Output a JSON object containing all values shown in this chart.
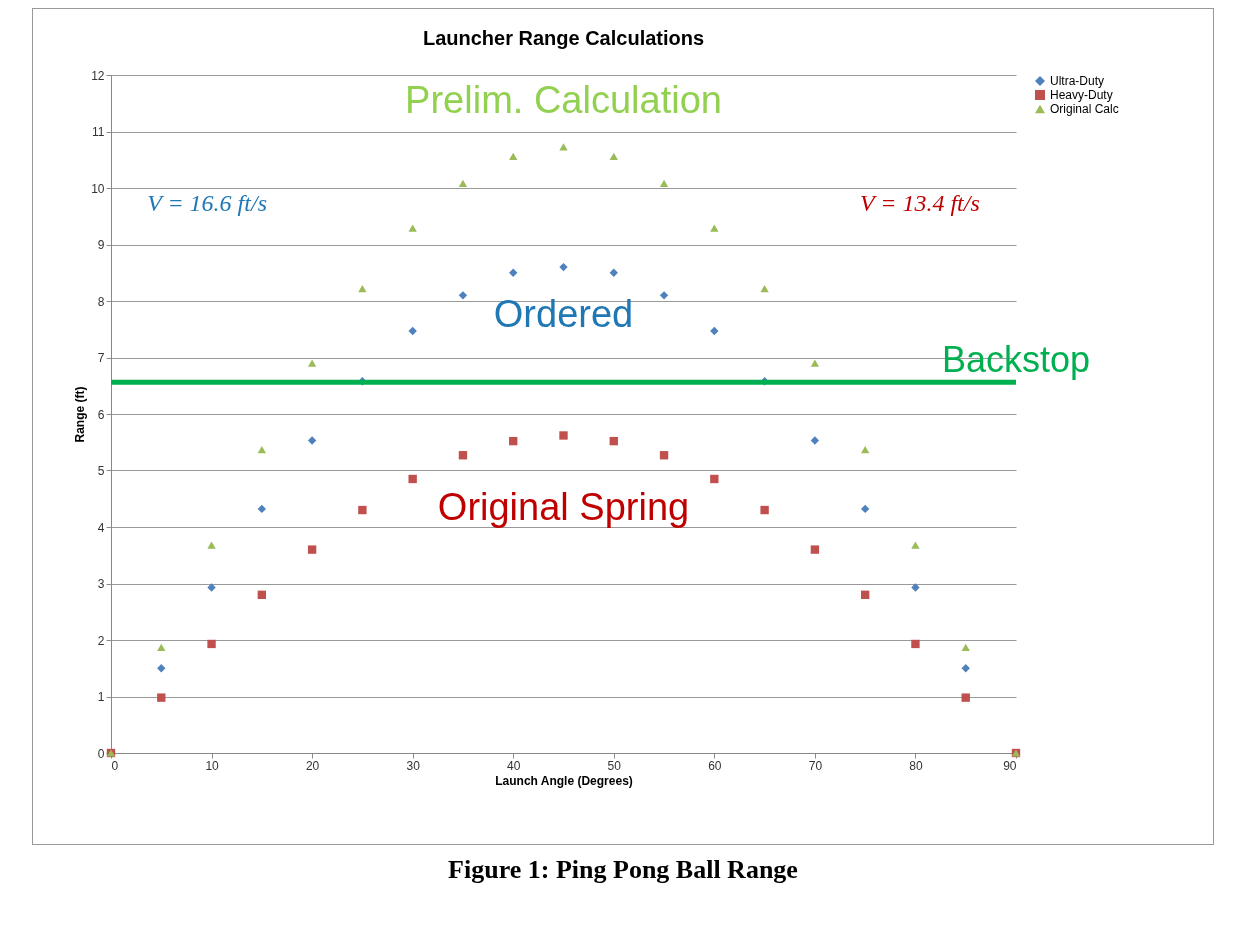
{
  "chart_data": {
    "type": "scatter",
    "title": "Launcher Range Calculations",
    "xlabel": "Launch Angle (Degrees)",
    "ylabel": "Range (ft)",
    "x": [
      0,
      5,
      10,
      15,
      20,
      25,
      30,
      35,
      40,
      45,
      50,
      55,
      60,
      65,
      70,
      75,
      80,
      85,
      90
    ],
    "series": [
      {
        "name": "Ultra-Duty",
        "color": "#4f81bd",
        "marker": "diamond",
        "values": [
          null,
          1.5,
          2.93,
          4.32,
          5.53,
          6.58,
          7.47,
          8.1,
          8.5,
          8.6,
          8.5,
          8.1,
          7.47,
          6.58,
          5.53,
          4.32,
          2.93,
          1.5,
          null
        ]
      },
      {
        "name": "Heavy-Duty",
        "color": "#c0504d",
        "marker": "square",
        "values": [
          0,
          0.98,
          1.93,
          2.8,
          3.6,
          4.3,
          4.85,
          5.27,
          5.52,
          5.62,
          5.52,
          5.27,
          4.85,
          4.3,
          3.6,
          2.8,
          1.93,
          0.98,
          0
        ]
      },
      {
        "name": "Original Calc",
        "color": "#9bbb59",
        "marker": "triangle",
        "values": [
          0,
          1.87,
          3.68,
          5.37,
          6.9,
          8.22,
          9.29,
          10.08,
          10.56,
          10.73,
          10.56,
          10.08,
          9.29,
          8.22,
          6.9,
          5.37,
          3.68,
          1.87,
          0
        ]
      }
    ],
    "xlim": [
      0,
      90
    ],
    "xticks": [
      0,
      10,
      20,
      30,
      40,
      50,
      60,
      70,
      80,
      90
    ],
    "ylim": [
      0,
      12
    ],
    "yticks": [
      0,
      1,
      2,
      3,
      4,
      5,
      6,
      7,
      8,
      9,
      10,
      11,
      12
    ],
    "grid": "y",
    "legend": "right",
    "ref_lines": [
      {
        "axis": "y",
        "value": 6.56,
        "label": "Backstop",
        "color": "#00b050"
      }
    ],
    "annotations": [
      "Prelim. Calculation",
      "Ordered",
      "Original Spring",
      "V = 16.6 ft/s",
      "V = 13.4 ft/s",
      "Figure 1: Ping Pong Ball Range"
    ]
  }
}
